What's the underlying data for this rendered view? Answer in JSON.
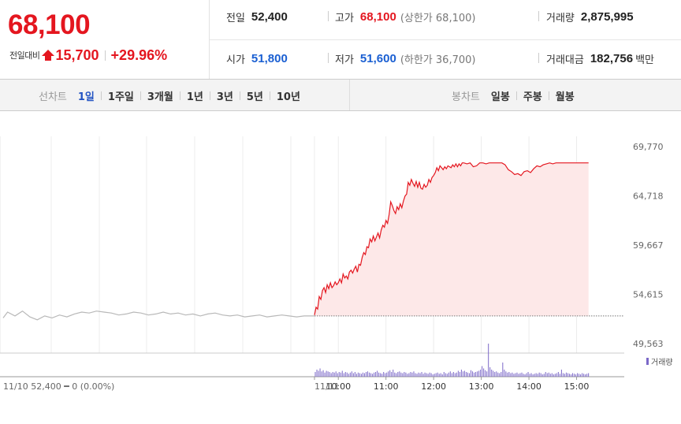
{
  "summary": {
    "current_price": "68,100",
    "change_label": "전일대비",
    "change_value": "15,700",
    "change_percent": "+29.96%"
  },
  "stats": {
    "prev_close": {
      "label": "전일",
      "value": "52,400"
    },
    "high": {
      "label": "고가",
      "value": "68,100",
      "sub": "(상한가 68,100)"
    },
    "volume": {
      "label": "거래량",
      "value": "2,875,995"
    },
    "open": {
      "label": "시가",
      "value": "51,800"
    },
    "low": {
      "label": "저가",
      "value": "51,600",
      "sub": "(하한가 36,700)"
    },
    "trade_value": {
      "label": "거래대금",
      "value": "182,756",
      "unit": "백만"
    }
  },
  "toolbar": {
    "line_chart_label": "선차트",
    "line_periods": [
      "1일",
      "1주일",
      "3개월",
      "1년",
      "3년",
      "5년",
      "10년"
    ],
    "selected_period": "1일",
    "candle_chart_label": "봉차트",
    "candle_periods": [
      "일봉",
      "주봉",
      "월봉"
    ]
  },
  "colors": {
    "up": "#e4161f",
    "down": "#1a5fd2",
    "fill": "#fde8e8",
    "prev_day_line": "#b8b8b8",
    "volume_bar": "#7b68c8"
  },
  "chart_data": {
    "type": "line",
    "y_ticks": [
      "69,770",
      "64,718",
      "59,667",
      "54,615",
      "49,563"
    ],
    "ylim": [
      49563,
      69770
    ],
    "baseline": 52400,
    "volume_legend": "거래량",
    "prev_day_caption": "11/10  52,400 ━ 0 (0.00%)",
    "today_label": "11/11",
    "x_ticks": [
      "10:00",
      "11:00",
      "12:00",
      "13:00",
      "14:00",
      "15:00"
    ],
    "x_tick_minutes": [
      30,
      90,
      150,
      210,
      270,
      330
    ],
    "prev_day_series": [
      [
        0,
        52200
      ],
      [
        3,
        52800
      ],
      [
        8,
        52400
      ],
      [
        13,
        52900
      ],
      [
        18,
        52300
      ],
      [
        23,
        52000
      ],
      [
        28,
        52400
      ],
      [
        33,
        52200
      ],
      [
        38,
        52500
      ],
      [
        43,
        52300
      ],
      [
        48,
        52600
      ],
      [
        53,
        52800
      ],
      [
        58,
        52700
      ],
      [
        63,
        52900
      ],
      [
        68,
        52800
      ],
      [
        73,
        52700
      ],
      [
        78,
        52500
      ],
      [
        83,
        52600
      ],
      [
        88,
        52800
      ],
      [
        93,
        52700
      ],
      [
        98,
        52500
      ],
      [
        103,
        52600
      ],
      [
        108,
        52800
      ],
      [
        113,
        52600
      ],
      [
        118,
        52700
      ],
      [
        123,
        52500
      ],
      [
        128,
        52600
      ],
      [
        133,
        52400
      ],
      [
        138,
        52600
      ],
      [
        143,
        52700
      ],
      [
        148,
        52500
      ],
      [
        153,
        52400
      ],
      [
        158,
        52500
      ],
      [
        163,
        52300
      ],
      [
        168,
        52400
      ],
      [
        173,
        52500
      ],
      [
        178,
        52300
      ],
      [
        183,
        52400
      ],
      [
        188,
        52500
      ],
      [
        193,
        52400
      ],
      [
        198,
        52300
      ],
      [
        203,
        52400
      ],
      [
        210,
        52400
      ]
    ],
    "today_series": [
      [
        0,
        52500
      ],
      [
        2,
        53300
      ],
      [
        4,
        53100
      ],
      [
        6,
        54400
      ],
      [
        8,
        54100
      ],
      [
        10,
        55000
      ],
      [
        12,
        55300
      ],
      [
        14,
        54800
      ],
      [
        16,
        55600
      ],
      [
        18,
        55200
      ],
      [
        20,
        55800
      ],
      [
        22,
        55300
      ],
      [
        24,
        55500
      ],
      [
        26,
        55900
      ],
      [
        28,
        55600
      ],
      [
        30,
        55800
      ],
      [
        32,
        56200
      ],
      [
        34,
        55800
      ],
      [
        36,
        56700
      ],
      [
        38,
        56300
      ],
      [
        40,
        56500
      ],
      [
        42,
        56200
      ],
      [
        44,
        56900
      ],
      [
        46,
        57100
      ],
      [
        48,
        56800
      ],
      [
        50,
        57200
      ],
      [
        52,
        57500
      ],
      [
        54,
        56900
      ],
      [
        56,
        57700
      ],
      [
        58,
        57600
      ],
      [
        60,
        58400
      ],
      [
        62,
        58900
      ],
      [
        64,
        58700
      ],
      [
        66,
        59500
      ],
      [
        68,
        59400
      ],
      [
        70,
        60300
      ],
      [
        72,
        60000
      ],
      [
        74,
        60600
      ],
      [
        76,
        60100
      ],
      [
        78,
        60500
      ],
      [
        80,
        60900
      ],
      [
        82,
        60400
      ],
      [
        84,
        61200
      ],
      [
        86,
        61700
      ],
      [
        88,
        61500
      ],
      [
        90,
        62200
      ],
      [
        92,
        61900
      ],
      [
        94,
        62800
      ],
      [
        96,
        64100
      ],
      [
        98,
        63700
      ],
      [
        100,
        63200
      ],
      [
        102,
        62900
      ],
      [
        104,
        63600
      ],
      [
        106,
        63300
      ],
      [
        108,
        63900
      ],
      [
        110,
        63500
      ],
      [
        112,
        64200
      ],
      [
        114,
        64700
      ],
      [
        116,
        64900
      ],
      [
        118,
        66100
      ],
      [
        120,
        65800
      ],
      [
        122,
        66400
      ],
      [
        124,
        66000
      ],
      [
        126,
        65700
      ],
      [
        128,
        66200
      ],
      [
        130,
        65600
      ],
      [
        132,
        66100
      ],
      [
        134,
        65500
      ],
      [
        136,
        65400
      ],
      [
        138,
        65900
      ],
      [
        140,
        65600
      ],
      [
        142,
        65800
      ],
      [
        144,
        66400
      ],
      [
        146,
        66100
      ],
      [
        148,
        66600
      ],
      [
        150,
        66800
      ],
      [
        152,
        67100
      ],
      [
        154,
        67600
      ],
      [
        156,
        67300
      ],
      [
        158,
        67800
      ],
      [
        160,
        67600
      ],
      [
        162,
        67400
      ],
      [
        164,
        67700
      ],
      [
        166,
        67500
      ],
      [
        168,
        67800
      ],
      [
        170,
        67700
      ],
      [
        172,
        67600
      ],
      [
        174,
        67900
      ],
      [
        176,
        67700
      ],
      [
        178,
        68000
      ],
      [
        180,
        67700
      ],
      [
        182,
        68000
      ],
      [
        184,
        67800
      ],
      [
        186,
        68100
      ],
      [
        188,
        68100
      ],
      [
        192,
        68000
      ],
      [
        196,
        68100
      ],
      [
        200,
        67700
      ],
      [
        204,
        67800
      ],
      [
        208,
        68100
      ],
      [
        212,
        68100
      ],
      [
        216,
        68000
      ],
      [
        220,
        68100
      ],
      [
        224,
        68100
      ],
      [
        228,
        68100
      ],
      [
        232,
        68100
      ],
      [
        236,
        68100
      ],
      [
        240,
        67900
      ],
      [
        244,
        67400
      ],
      [
        248,
        67200
      ],
      [
        252,
        66900
      ],
      [
        256,
        67000
      ],
      [
        260,
        66800
      ],
      [
        264,
        67200
      ],
      [
        268,
        67300
      ],
      [
        272,
        67100
      ],
      [
        276,
        67500
      ],
      [
        280,
        67800
      ],
      [
        284,
        67700
      ],
      [
        288,
        67900
      ],
      [
        292,
        68000
      ],
      [
        296,
        68100
      ],
      [
        300,
        68000
      ],
      [
        304,
        68100
      ],
      [
        308,
        68100
      ],
      [
        312,
        68100
      ],
      [
        316,
        68100
      ],
      [
        320,
        68100
      ],
      [
        324,
        68100
      ],
      [
        328,
        68100
      ],
      [
        332,
        68100
      ],
      [
        336,
        68100
      ],
      [
        340,
        68100
      ],
      [
        345,
        68100
      ]
    ],
    "volume_series": [
      [
        1,
        8
      ],
      [
        3,
        12
      ],
      [
        5,
        10
      ],
      [
        7,
        14
      ],
      [
        9,
        9
      ],
      [
        11,
        11
      ],
      [
        13,
        7
      ],
      [
        15,
        10
      ],
      [
        17,
        9
      ],
      [
        19,
        8
      ],
      [
        21,
        6
      ],
      [
        23,
        8
      ],
      [
        25,
        7
      ],
      [
        27,
        9
      ],
      [
        29,
        6
      ],
      [
        31,
        8
      ],
      [
        33,
        7
      ],
      [
        35,
        10
      ],
      [
        37,
        6
      ],
      [
        39,
        8
      ],
      [
        41,
        7
      ],
      [
        43,
        5
      ],
      [
        45,
        7
      ],
      [
        47,
        9
      ],
      [
        49,
        6
      ],
      [
        51,
        8
      ],
      [
        53,
        5
      ],
      [
        55,
        7
      ],
      [
        57,
        6
      ],
      [
        59,
        5
      ],
      [
        61,
        7
      ],
      [
        63,
        6
      ],
      [
        65,
        8
      ],
      [
        67,
        9
      ],
      [
        69,
        7
      ],
      [
        71,
        6
      ],
      [
        73,
        5
      ],
      [
        75,
        7
      ],
      [
        77,
        8
      ],
      [
        79,
        10
      ],
      [
        81,
        7
      ],
      [
        83,
        6
      ],
      [
        85,
        5
      ],
      [
        87,
        8
      ],
      [
        89,
        6
      ],
      [
        91,
        7
      ],
      [
        93,
        9
      ],
      [
        95,
        11
      ],
      [
        97,
        8
      ],
      [
        99,
        12
      ],
      [
        101,
        7
      ],
      [
        103,
        6
      ],
      [
        105,
        8
      ],
      [
        107,
        9
      ],
      [
        109,
        7
      ],
      [
        111,
        6
      ],
      [
        113,
        8
      ],
      [
        115,
        7
      ],
      [
        117,
        5
      ],
      [
        119,
        6
      ],
      [
        121,
        8
      ],
      [
        123,
        7
      ],
      [
        125,
        9
      ],
      [
        127,
        6
      ],
      [
        129,
        5
      ],
      [
        131,
        7
      ],
      [
        133,
        6
      ],
      [
        135,
        8
      ],
      [
        137,
        5
      ],
      [
        139,
        7
      ],
      [
        141,
        6
      ],
      [
        143,
        5
      ],
      [
        145,
        7
      ],
      [
        147,
        6
      ],
      [
        149,
        4
      ],
      [
        151,
        5
      ],
      [
        153,
        6
      ],
      [
        155,
        7
      ],
      [
        157,
        5
      ],
      [
        159,
        6
      ],
      [
        161,
        4
      ],
      [
        163,
        8
      ],
      [
        165,
        6
      ],
      [
        167,
        5
      ],
      [
        169,
        7
      ],
      [
        171,
        9
      ],
      [
        173,
        6
      ],
      [
        175,
        8
      ],
      [
        177,
        6
      ],
      [
        179,
        7
      ],
      [
        181,
        10
      ],
      [
        183,
        8
      ],
      [
        185,
        12
      ],
      [
        187,
        9
      ],
      [
        189,
        10
      ],
      [
        191,
        8
      ],
      [
        193,
        7
      ],
      [
        195,
        6
      ],
      [
        197,
        11
      ],
      [
        199,
        9
      ],
      [
        201,
        7
      ],
      [
        203,
        8
      ],
      [
        205,
        9
      ],
      [
        207,
        10
      ],
      [
        209,
        12
      ],
      [
        211,
        18
      ],
      [
        213,
        14
      ],
      [
        215,
        11
      ],
      [
        217,
        9
      ],
      [
        219,
        56
      ],
      [
        221,
        16
      ],
      [
        223,
        12
      ],
      [
        225,
        10
      ],
      [
        227,
        8
      ],
      [
        229,
        9
      ],
      [
        231,
        7
      ],
      [
        233,
        6
      ],
      [
        235,
        8
      ],
      [
        237,
        24
      ],
      [
        239,
        12
      ],
      [
        241,
        9
      ],
      [
        243,
        7
      ],
      [
        245,
        8
      ],
      [
        247,
        6
      ],
      [
        249,
        7
      ],
      [
        251,
        5
      ],
      [
        253,
        6
      ],
      [
        255,
        7
      ],
      [
        257,
        5
      ],
      [
        259,
        6
      ],
      [
        261,
        7
      ],
      [
        263,
        5
      ],
      [
        265,
        4
      ],
      [
        267,
        6
      ],
      [
        269,
        8
      ],
      [
        271,
        5
      ],
      [
        273,
        6
      ],
      [
        275,
        4
      ],
      [
        277,
        5
      ],
      [
        279,
        6
      ],
      [
        281,
        5
      ],
      [
        283,
        7
      ],
      [
        285,
        6
      ],
      [
        287,
        4
      ],
      [
        289,
        5
      ],
      [
        291,
        8
      ],
      [
        293,
        6
      ],
      [
        295,
        7
      ],
      [
        297,
        5
      ],
      [
        299,
        6
      ],
      [
        301,
        4
      ],
      [
        303,
        5
      ],
      [
        305,
        6
      ],
      [
        307,
        8
      ],
      [
        309,
        5
      ],
      [
        311,
        12
      ],
      [
        313,
        6
      ],
      [
        315,
        5
      ],
      [
        317,
        7
      ],
      [
        319,
        6
      ],
      [
        321,
        5
      ],
      [
        323,
        4
      ],
      [
        325,
        6
      ],
      [
        327,
        5
      ],
      [
        329,
        4
      ],
      [
        331,
        6
      ],
      [
        333,
        5
      ],
      [
        335,
        4
      ],
      [
        337,
        6
      ],
      [
        339,
        5
      ],
      [
        341,
        4
      ],
      [
        343,
        5
      ],
      [
        345,
        6
      ]
    ]
  }
}
